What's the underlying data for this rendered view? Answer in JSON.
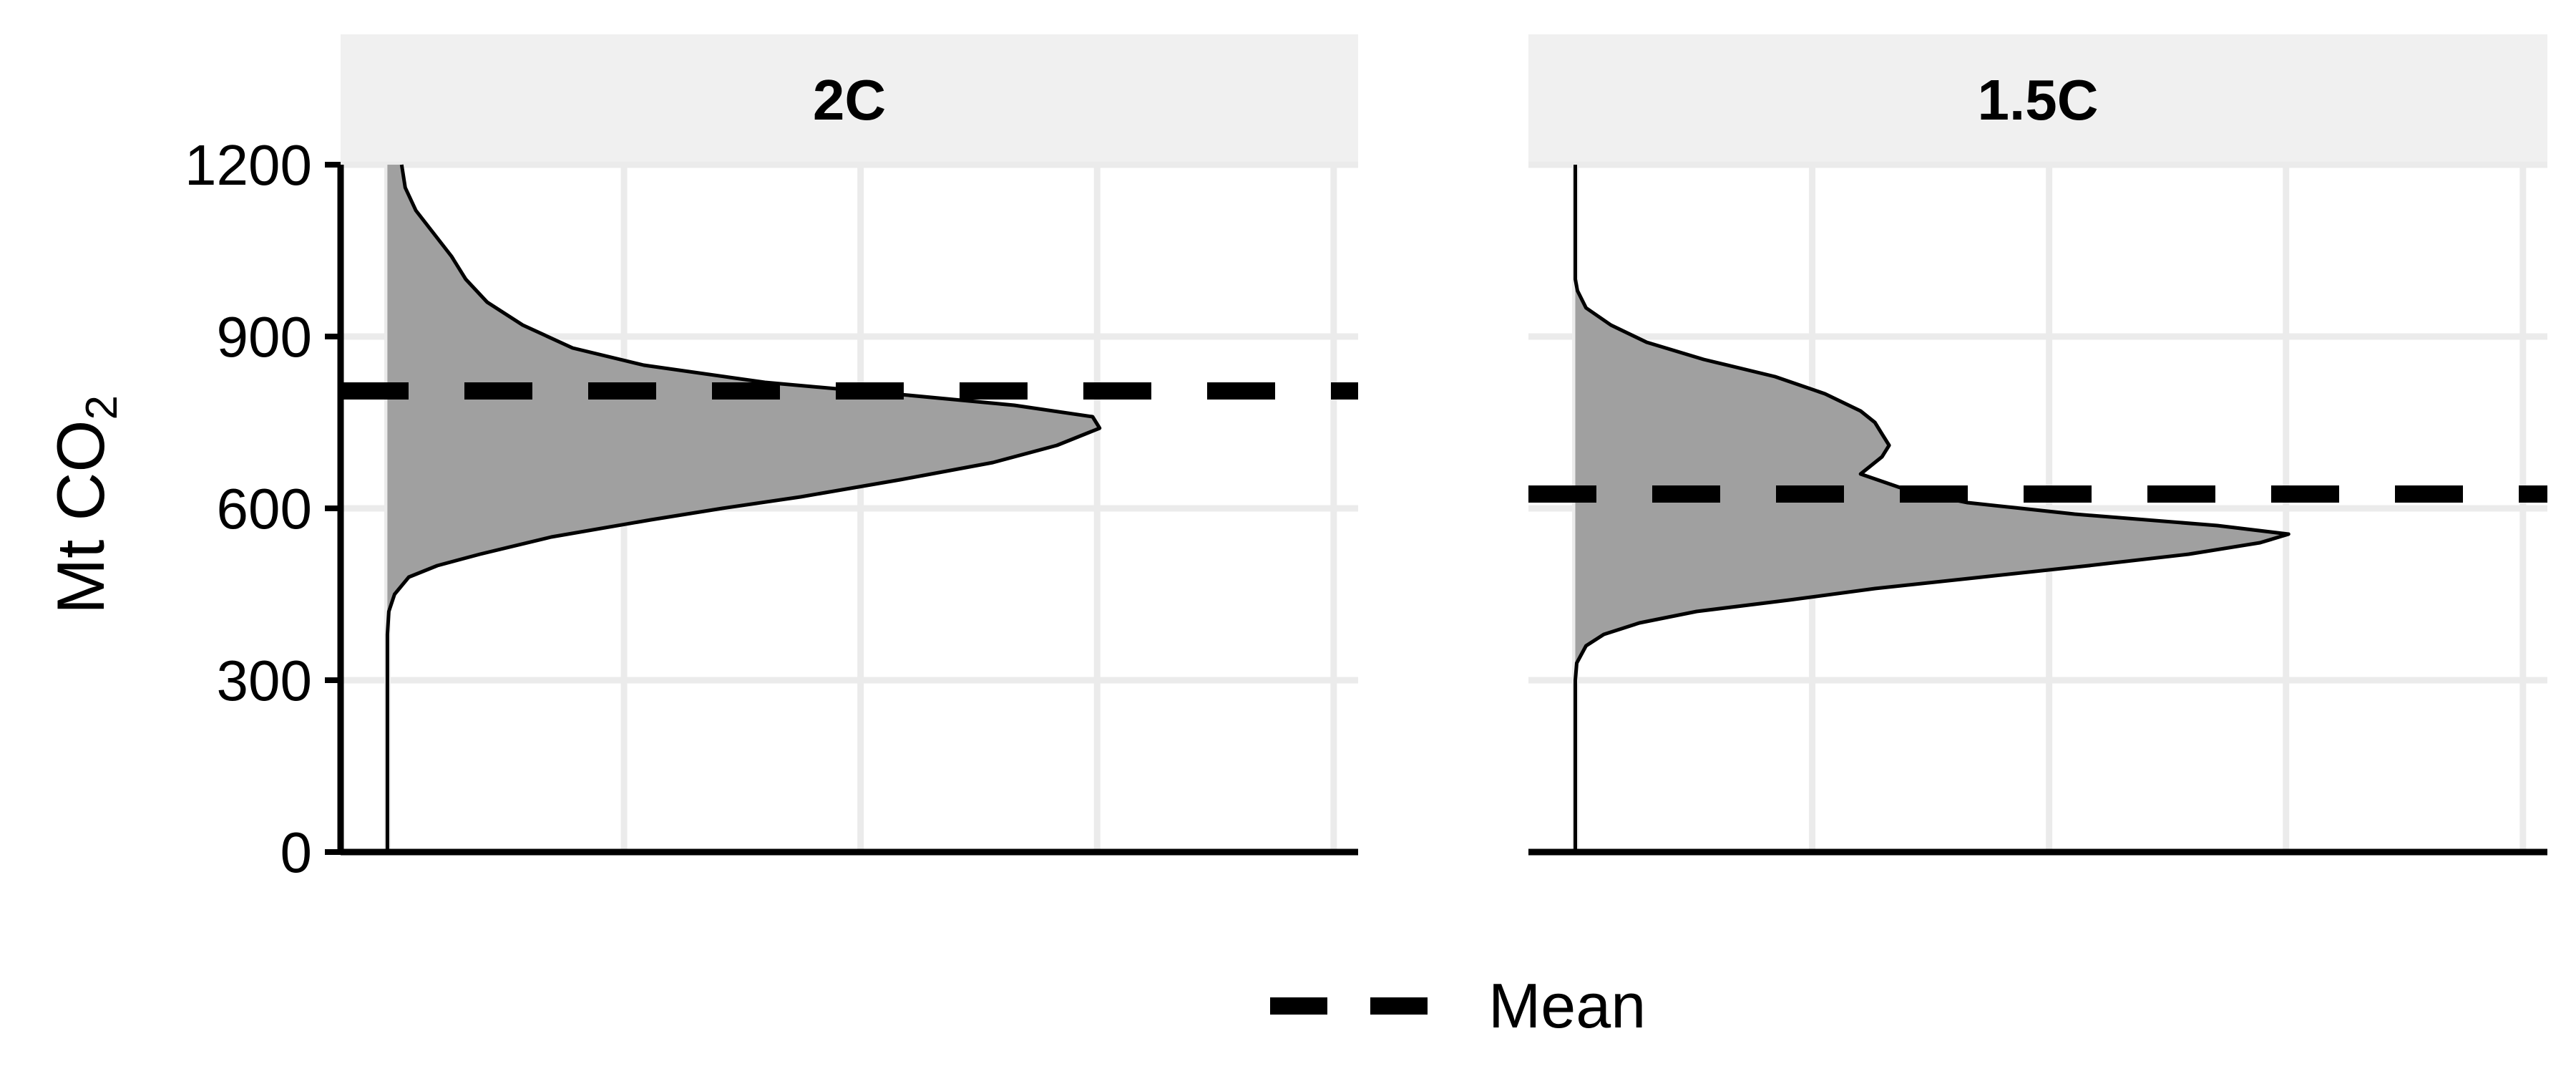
{
  "chart_data": {
    "type": "area",
    "layout": "facet",
    "ylabel_text": "Mt CO",
    "ylabel_subscript": "2",
    "ylim": [
      0,
      1200
    ],
    "yticks": [
      0,
      300,
      600,
      900,
      1200
    ],
    "grid": true,
    "legend": {
      "position": "bottom",
      "entries": [
        {
          "label": "Mean",
          "style": "dashed"
        }
      ]
    },
    "colors": {
      "fill": "#a0a0a0",
      "stroke": "#000000",
      "grid": "#ebebeb",
      "strip": "#f0f0f0"
    },
    "panels": [
      {
        "label": "2C",
        "mean": 805,
        "density": [
          [
            0,
            0
          ],
          [
            380,
            0
          ],
          [
            420,
            0.002
          ],
          [
            450,
            0.01
          ],
          [
            480,
            0.03
          ],
          [
            500,
            0.07
          ],
          [
            520,
            0.13
          ],
          [
            550,
            0.23
          ],
          [
            580,
            0.37
          ],
          [
            600,
            0.47
          ],
          [
            620,
            0.58
          ],
          [
            650,
            0.72
          ],
          [
            680,
            0.85
          ],
          [
            710,
            0.94
          ],
          [
            740,
            1.0
          ],
          [
            760,
            0.99
          ],
          [
            780,
            0.88
          ],
          [
            800,
            0.71
          ],
          [
            820,
            0.53
          ],
          [
            850,
            0.36
          ],
          [
            880,
            0.26
          ],
          [
            920,
            0.19
          ],
          [
            960,
            0.14
          ],
          [
            1000,
            0.11
          ],
          [
            1040,
            0.09
          ],
          [
            1080,
            0.065
          ],
          [
            1120,
            0.04
          ],
          [
            1160,
            0.025
          ],
          [
            1200,
            0.02
          ]
        ]
      },
      {
        "label": "1.5C",
        "mean": 625,
        "density": [
          [
            0,
            0
          ],
          [
            300,
            0
          ],
          [
            330,
            0.002
          ],
          [
            360,
            0.015
          ],
          [
            380,
            0.04
          ],
          [
            400,
            0.09
          ],
          [
            420,
            0.17
          ],
          [
            440,
            0.3
          ],
          [
            460,
            0.42
          ],
          [
            480,
            0.57
          ],
          [
            500,
            0.72
          ],
          [
            520,
            0.86
          ],
          [
            540,
            0.96
          ],
          [
            555,
            1.0
          ],
          [
            570,
            0.9
          ],
          [
            590,
            0.7
          ],
          [
            610,
            0.55
          ],
          [
            630,
            0.47
          ],
          [
            660,
            0.4
          ],
          [
            690,
            0.43
          ],
          [
            710,
            0.44
          ],
          [
            730,
            0.43
          ],
          [
            750,
            0.42
          ],
          [
            770,
            0.4
          ],
          [
            800,
            0.35
          ],
          [
            830,
            0.28
          ],
          [
            860,
            0.18
          ],
          [
            890,
            0.1
          ],
          [
            920,
            0.05
          ],
          [
            950,
            0.015
          ],
          [
            980,
            0.003
          ],
          [
            1000,
            0
          ],
          [
            1200,
            0
          ]
        ]
      }
    ]
  }
}
